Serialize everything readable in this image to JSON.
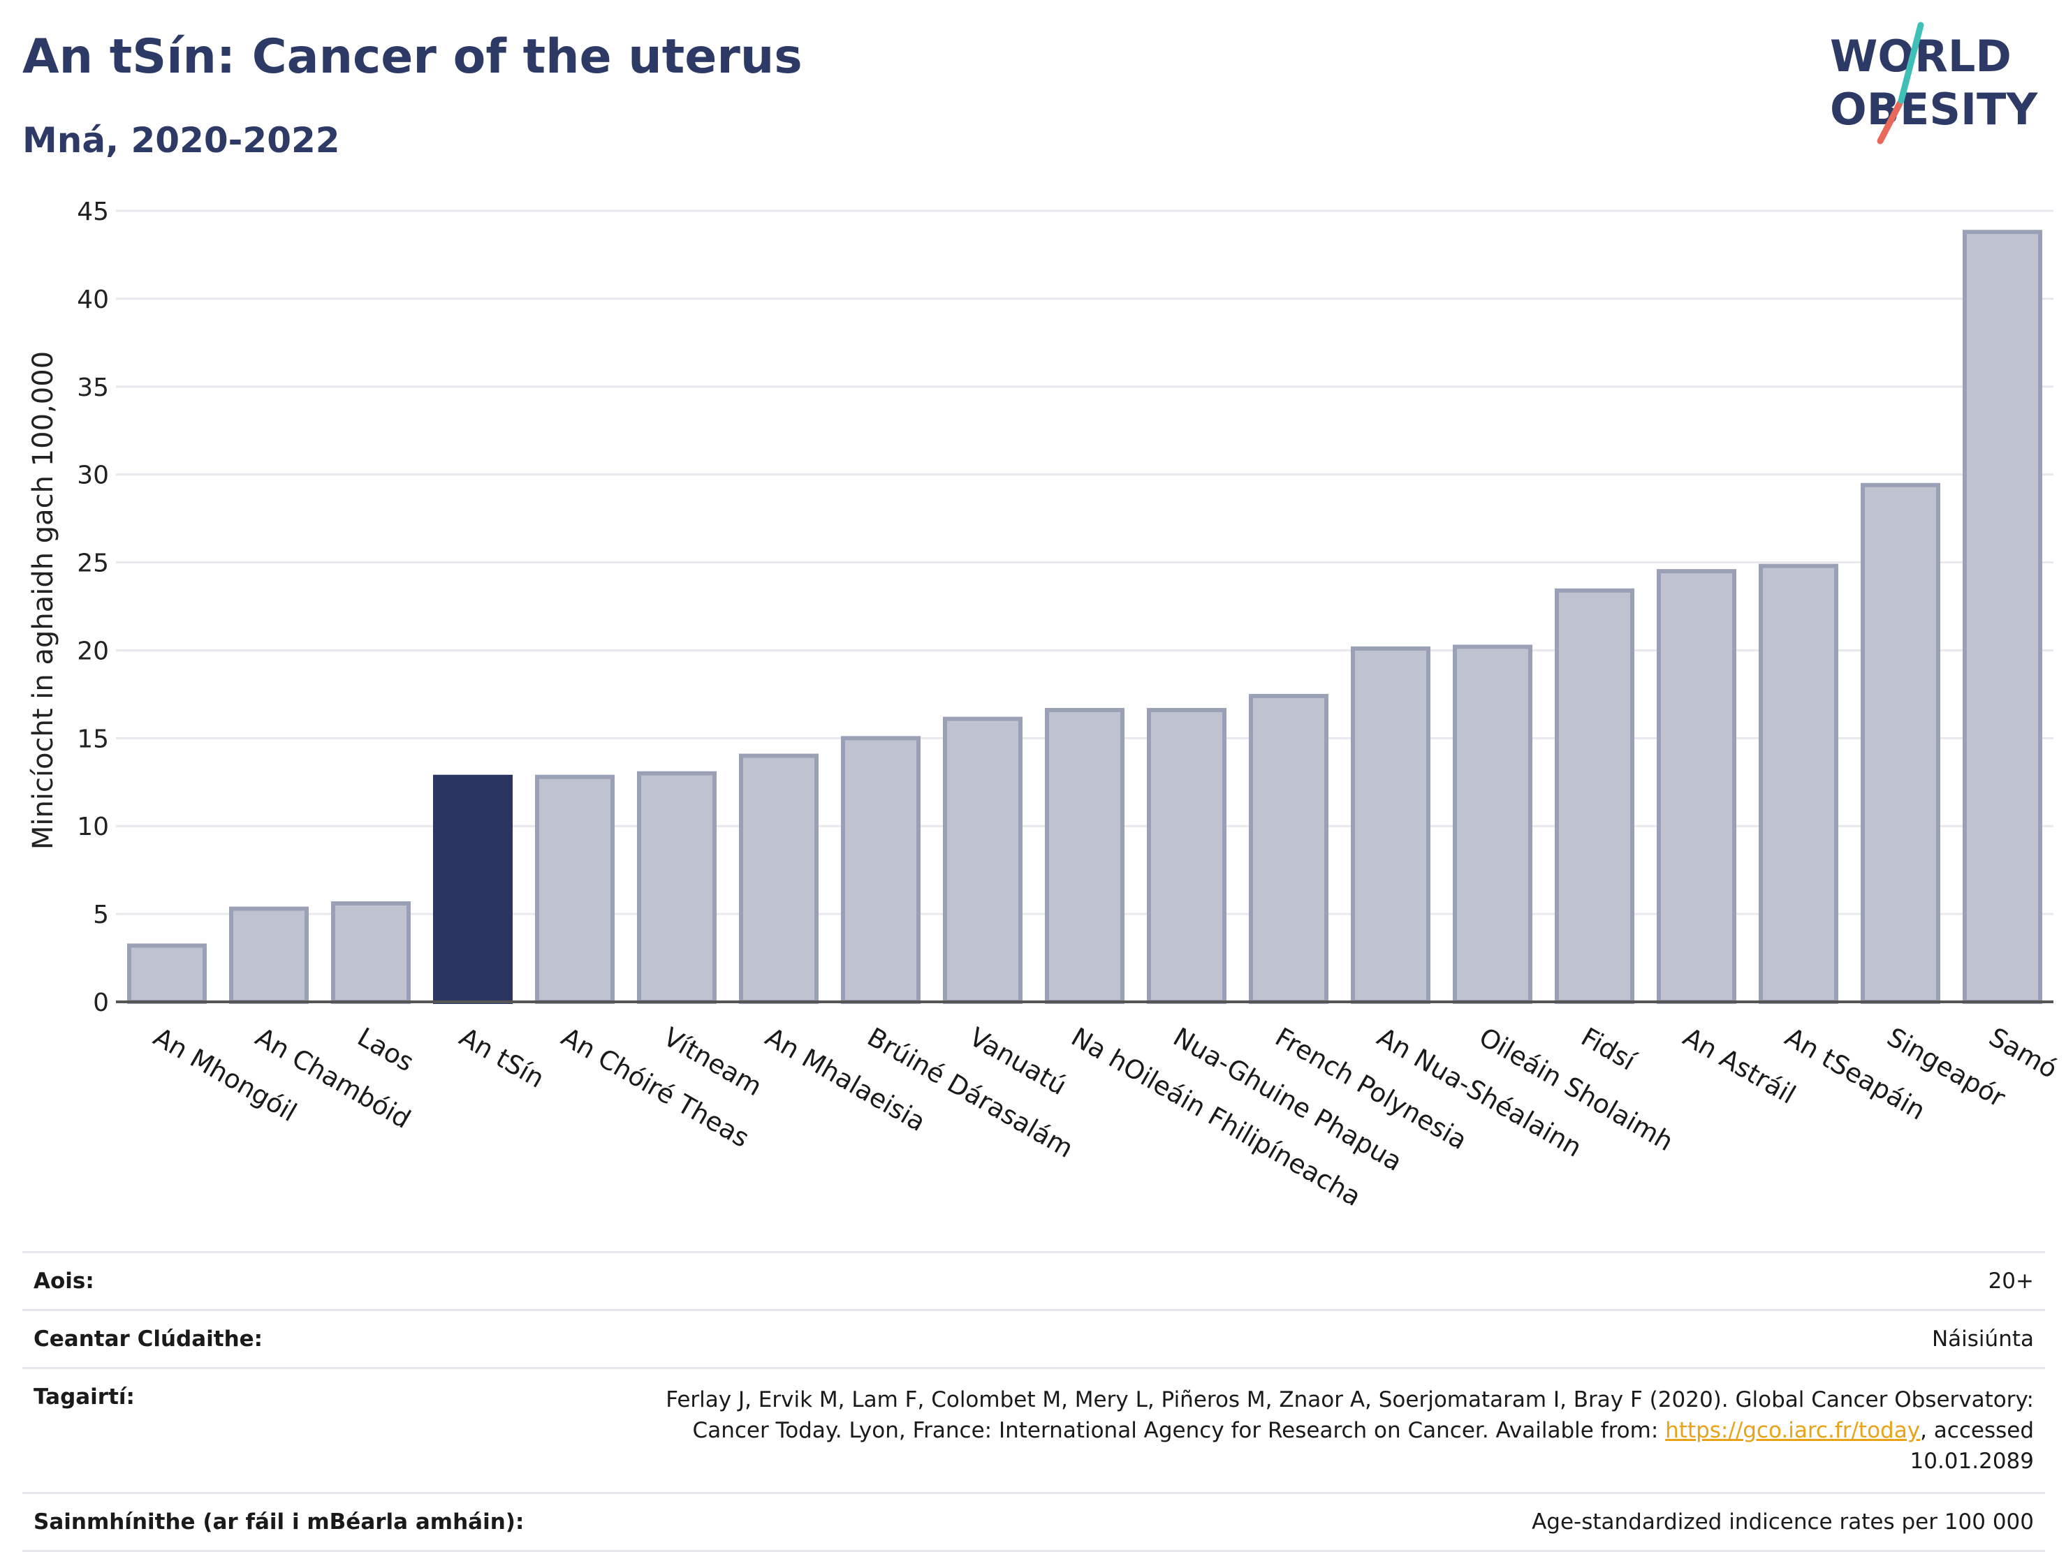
{
  "header": {
    "title": "An tSín: Cancer of the uterus",
    "subtitle": "Mná, 2020-2022"
  },
  "logo": {
    "line1": "WORLD",
    "line2": "OBESITY"
  },
  "chart_data": {
    "type": "bar",
    "title": "An tSín: Cancer of the uterus",
    "subtitle": "Mná, 2020-2022",
    "ylabel": "Minicíocht in aghaidh gach 100,000",
    "xlabel": "",
    "ylim": [
      0,
      45
    ],
    "yticks": [
      0,
      5,
      10,
      15,
      20,
      25,
      30,
      35,
      40,
      45
    ],
    "grid": true,
    "highlight": "An tSín",
    "categories": [
      "An Mhongóil",
      "An Chambóid",
      "Laos",
      "An tSín",
      "An Chóiré Theas",
      "Vítneam",
      "An Mhalaeisia",
      "Brúiné Dárasalám",
      "Vanuatú",
      "Na hOileáin Fhilipíneacha",
      "Nua-Ghuine Phapua",
      "French Polynesia",
      "An Nua-Shéalainn",
      "Oileáin Sholaimh",
      "Fidsí",
      "An Astráil",
      "An tSeapáin",
      "Singeapór",
      "Samó"
    ],
    "values": [
      3.2,
      5.3,
      5.6,
      12.8,
      12.8,
      13.0,
      14.0,
      15.0,
      16.1,
      16.6,
      16.6,
      17.4,
      20.1,
      20.2,
      23.4,
      24.5,
      24.8,
      29.4,
      43.8
    ],
    "colors": {
      "bar": "#bfc3d0",
      "bar_edge": "#9aa0b5",
      "highlight": "#2b3561",
      "grid": "#e8e8ee",
      "axis": "#555555"
    }
  },
  "meta": {
    "age_label": "Aois:",
    "age_value": "20+",
    "coverage_label": "Ceantar Clúdaithe:",
    "coverage_value": "Náisiúnta",
    "refs_label": "Tagairtí:",
    "refs_text_1": "Ferlay J, Ervik M, Lam F, Colombet M, Mery L, Piñeros M, Znaor A, Soerjomataram I, Bray F (2020). Global Cancer Observatory: Cancer Today. Lyon, France: International Agency for Research on Cancer. Available from: ",
    "refs_link": "https://gco.iarc.fr/today",
    "refs_text_2": ", accessed 10.01.2089",
    "defs_label": "Sainmhínithe (ar fáil i mBéarla amháin):",
    "defs_value": "Age-standardized indicence rates per 100 000"
  }
}
